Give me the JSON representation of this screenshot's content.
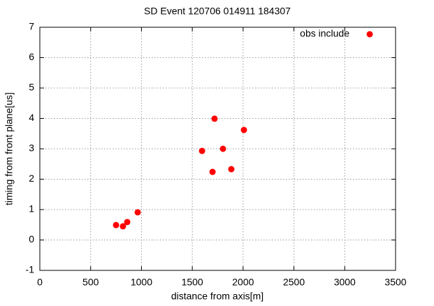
{
  "chart_data": {
    "type": "scatter",
    "title": "SD Event 120706 014911 184307",
    "x_label": "distance from axis[m]",
    "y_label": "timing from front plane[us]",
    "series": [
      {
        "name": "obs include",
        "color": "#ff0000",
        "x": [
          750,
          818,
          860,
          963,
          1596,
          1699,
          1719,
          1802,
          1884,
          2008
        ],
        "values": [
          0.49,
          0.45,
          0.59,
          0.91,
          2.93,
          2.24,
          3.99,
          3.0,
          2.33,
          3.62
        ]
      }
    ],
    "xlim": [
      0,
      3500
    ],
    "xticks": [
      0,
      500,
      1000,
      1500,
      2000,
      2500,
      3000,
      3500
    ],
    "ylim": [
      -1,
      7
    ],
    "yticks": [
      -1,
      0,
      1,
      2,
      3,
      4,
      5,
      6,
      7
    ],
    "grid": true,
    "legend": "upper right"
  }
}
